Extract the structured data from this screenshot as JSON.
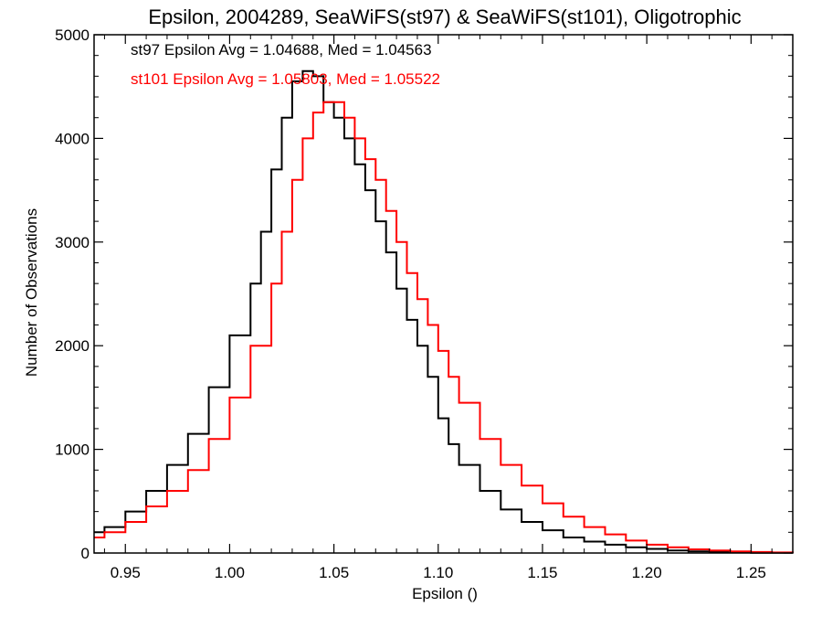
{
  "chart_data": {
    "type": "line",
    "title": "Epsilon, 2004289, SeaWiFS(st97) & SeaWiFS(st101), Oligotrophic",
    "xlabel": "Epsilon ()",
    "ylabel": "Number of Observations",
    "xlim": [
      0.935,
      1.27
    ],
    "ylim": [
      0,
      5000
    ],
    "grid": false,
    "legend_position": "top-left",
    "x_ticks": [
      0.95,
      1.0,
      1.05,
      1.1,
      1.15,
      1.2,
      1.25
    ],
    "x_tick_labels": [
      "0.95",
      "1.00",
      "1.05",
      "1.10",
      "1.15",
      "1.20",
      "1.25"
    ],
    "y_ticks": [
      0,
      1000,
      2000,
      3000,
      4000,
      5000
    ],
    "y_tick_labels": [
      "0",
      "1000",
      "2000",
      "3000",
      "4000",
      "5000"
    ],
    "series": [
      {
        "name": "st97",
        "color": "#000000",
        "step": true,
        "annotation": "st97 Epsilon Avg = 1.04688, Med = 1.04563",
        "x": [
          0.935,
          0.94,
          0.95,
          0.96,
          0.97,
          0.98,
          0.99,
          1.0,
          1.01,
          1.015,
          1.02,
          1.025,
          1.03,
          1.035,
          1.04,
          1.045,
          1.05,
          1.055,
          1.06,
          1.065,
          1.07,
          1.075,
          1.08,
          1.085,
          1.09,
          1.095,
          1.1,
          1.105,
          1.11,
          1.12,
          1.13,
          1.14,
          1.15,
          1.16,
          1.17,
          1.18,
          1.19,
          1.2,
          1.21,
          1.22,
          1.23,
          1.24,
          1.25,
          1.26,
          1.27
        ],
        "y": [
          200,
          250,
          400,
          600,
          850,
          1150,
          1600,
          2100,
          2600,
          3100,
          3700,
          4200,
          4550,
          4650,
          4600,
          4350,
          4200,
          4000,
          3750,
          3500,
          3200,
          2900,
          2550,
          2250,
          2000,
          1700,
          1300,
          1050,
          850,
          600,
          420,
          300,
          220,
          150,
          110,
          80,
          55,
          40,
          25,
          15,
          10,
          6,
          3,
          2,
          1
        ]
      },
      {
        "name": "st101",
        "color": "#ff0000",
        "step": true,
        "annotation": "st101 Epsilon Avg = 1.05803, Med = 1.05522",
        "x": [
          0.935,
          0.94,
          0.95,
          0.96,
          0.97,
          0.98,
          0.99,
          1.0,
          1.01,
          1.02,
          1.025,
          1.03,
          1.035,
          1.04,
          1.045,
          1.05,
          1.055,
          1.06,
          1.065,
          1.07,
          1.075,
          1.08,
          1.085,
          1.09,
          1.095,
          1.1,
          1.105,
          1.11,
          1.12,
          1.13,
          1.14,
          1.15,
          1.16,
          1.17,
          1.18,
          1.19,
          1.2,
          1.21,
          1.22,
          1.23,
          1.24,
          1.25,
          1.26,
          1.27
        ],
        "y": [
          150,
          200,
          300,
          450,
          600,
          800,
          1100,
          1500,
          2000,
          2600,
          3100,
          3600,
          4000,
          4250,
          4350,
          4350,
          4200,
          4000,
          3800,
          3600,
          3300,
          3000,
          2700,
          2450,
          2200,
          1950,
          1700,
          1450,
          1100,
          850,
          650,
          480,
          350,
          250,
          180,
          120,
          80,
          55,
          35,
          25,
          15,
          10,
          5,
          3
        ]
      }
    ]
  }
}
